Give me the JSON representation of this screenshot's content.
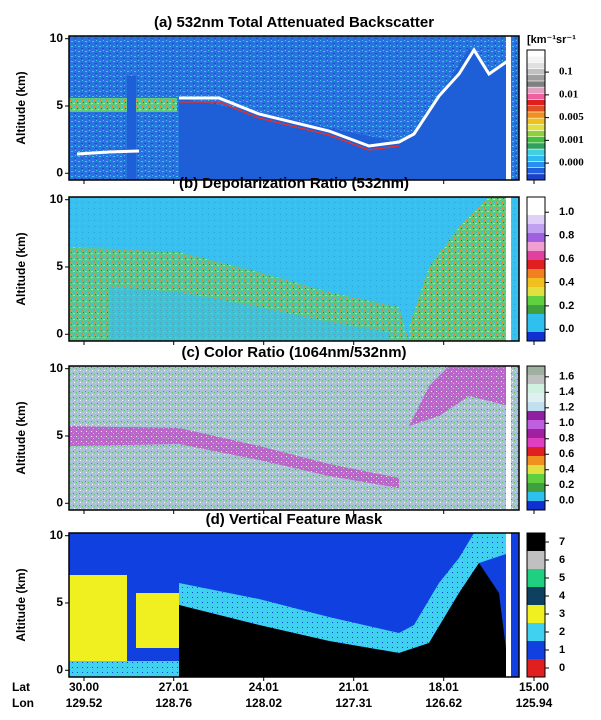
{
  "chart_data": [
    {
      "type": "heatmap",
      "title": "(a)  532nm Total Attenuated Backscatter",
      "y_label": "Altitude (km)",
      "ylim": [
        -0.5,
        10.2
      ],
      "yticks": [
        0,
        5,
        10
      ],
      "colorbar": {
        "label": "[km⁻¹sr⁻¹",
        "scale": "piecewise",
        "ticks": [
          {
            "value": 0,
            "label": "0.000"
          },
          0.001,
          0.005,
          0.01,
          0.1
        ],
        "colors": [
          "#1a3fc8",
          "#2060e0",
          "#2890f0",
          "#30b8f0",
          "#40d0e0",
          "#30a060",
          "#40c040",
          "#90d040",
          "#e0e040",
          "#f0c020",
          "#f09020",
          "#e05020",
          "#e02020",
          "#f060a0",
          "#e0a0c0",
          "#808080",
          "#a0a0a0",
          "#c0c0c0",
          "#e0e0e0",
          "#f4f4f4",
          "#ffffff"
        ]
      }
    },
    {
      "type": "heatmap",
      "title": "(b)  Depolarization Ratio (532nm)",
      "y_label": "Altitude (km)",
      "ylim": [
        -0.5,
        10.2
      ],
      "yticks": [
        0,
        5,
        10
      ],
      "colorbar": {
        "scale": "linear",
        "clim": [
          -0.1,
          1.13
        ],
        "ticks": [
          {
            "value": 0,
            "label": "0.0"
          },
          0.2,
          0.4,
          0.6,
          0.8,
          {
            "value": 1,
            "label": "1.0"
          }
        ],
        "colors": [
          "#1030d0",
          "#30c0f0",
          "#30c0f0",
          "#40a040",
          "#60d040",
          "#e0e040",
          "#f0c020",
          "#f08020",
          "#e02020",
          "#e040a0",
          "#f0a0d0",
          "#a060e0",
          "#c0a0f0",
          "#e0d0f8",
          "#ffffff",
          "#ffffff"
        ]
      }
    },
    {
      "type": "heatmap",
      "title": "(c)  Color Ratio (1064nm/532nm)",
      "y_label": "Altitude (km)",
      "ylim": [
        -0.5,
        10.2
      ],
      "yticks": [
        0,
        5,
        10
      ],
      "colorbar": {
        "scale": "linear",
        "clim": [
          -0.12,
          1.74
        ],
        "ticks": [
          {
            "value": 0,
            "label": "0.0"
          },
          0.2,
          0.4,
          0.6,
          0.8,
          {
            "value": 1,
            "label": "1.0"
          },
          1.2,
          1.4,
          1.6
        ],
        "colors": [
          "#1030d0",
          "#30c0f0",
          "#40a040",
          "#60d040",
          "#e0e040",
          "#f09020",
          "#e02020",
          "#e040c0",
          "#a020a0",
          "#c060e0",
          "#9020a0",
          "#c0e0f0",
          "#e0f0f0",
          "#d0f0e0",
          "#c0c0c0",
          "#a0b0a0"
        ]
      }
    },
    {
      "type": "heatmap",
      "title": "(d)  Vertical Feature Mask",
      "y_label": "Altitude (km)",
      "ylim": [
        -0.5,
        10.2
      ],
      "yticks": [
        0,
        5,
        10
      ],
      "colorbar": {
        "scale": "linear",
        "clim": [
          -0.5,
          7.5
        ],
        "ticks": [
          0,
          1,
          2,
          3,
          4,
          5,
          6,
          7
        ],
        "colors": [
          "#e02020",
          "#1040e0",
          "#40d0f0",
          "#f0f020",
          "#104060",
          "#20d080",
          "#c0c0c0",
          "#000000"
        ]
      },
      "x_label": "Lat",
      "x2_label": "Lon",
      "xlim": [
        30.5,
        15.5
      ],
      "xticks": [
        {
          "value": 30,
          "label": "30.00"
        },
        27.01,
        24.01,
        21.01,
        18.01,
        {
          "value": 15,
          "label": "15.00"
        }
      ],
      "lon_ticks": [
        129.52,
        128.76,
        128.02,
        127.31,
        126.62,
        125.94
      ]
    }
  ]
}
